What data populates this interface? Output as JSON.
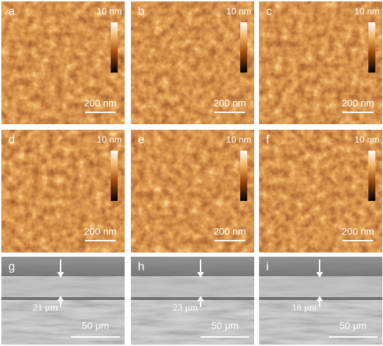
{
  "afm_panels": [
    {
      "label": "a",
      "colorbar_max": "10 nm",
      "scale_bar": "200 nm"
    },
    {
      "label": "b",
      "colorbar_max": "10 nm",
      "scale_bar": "200 nm"
    },
    {
      "label": "c",
      "colorbar_max": "10 nm",
      "scale_bar": "200 nm"
    },
    {
      "label": "d",
      "colorbar_max": "10 nm",
      "scale_bar": "200 nm"
    },
    {
      "label": "e",
      "colorbar_max": "10 nm",
      "scale_bar": "200 nm"
    },
    {
      "label": "f",
      "colorbar_max": "10 nm",
      "scale_bar": "200 nm"
    }
  ],
  "sem_panels": [
    {
      "label": "g",
      "thickness": "21 μm",
      "scale_bar": "50 μm"
    },
    {
      "label": "h",
      "thickness": "23 μm",
      "scale_bar": "50 μm"
    },
    {
      "label": "i",
      "thickness": "18 μm",
      "scale_bar": "50 μm"
    }
  ]
}
